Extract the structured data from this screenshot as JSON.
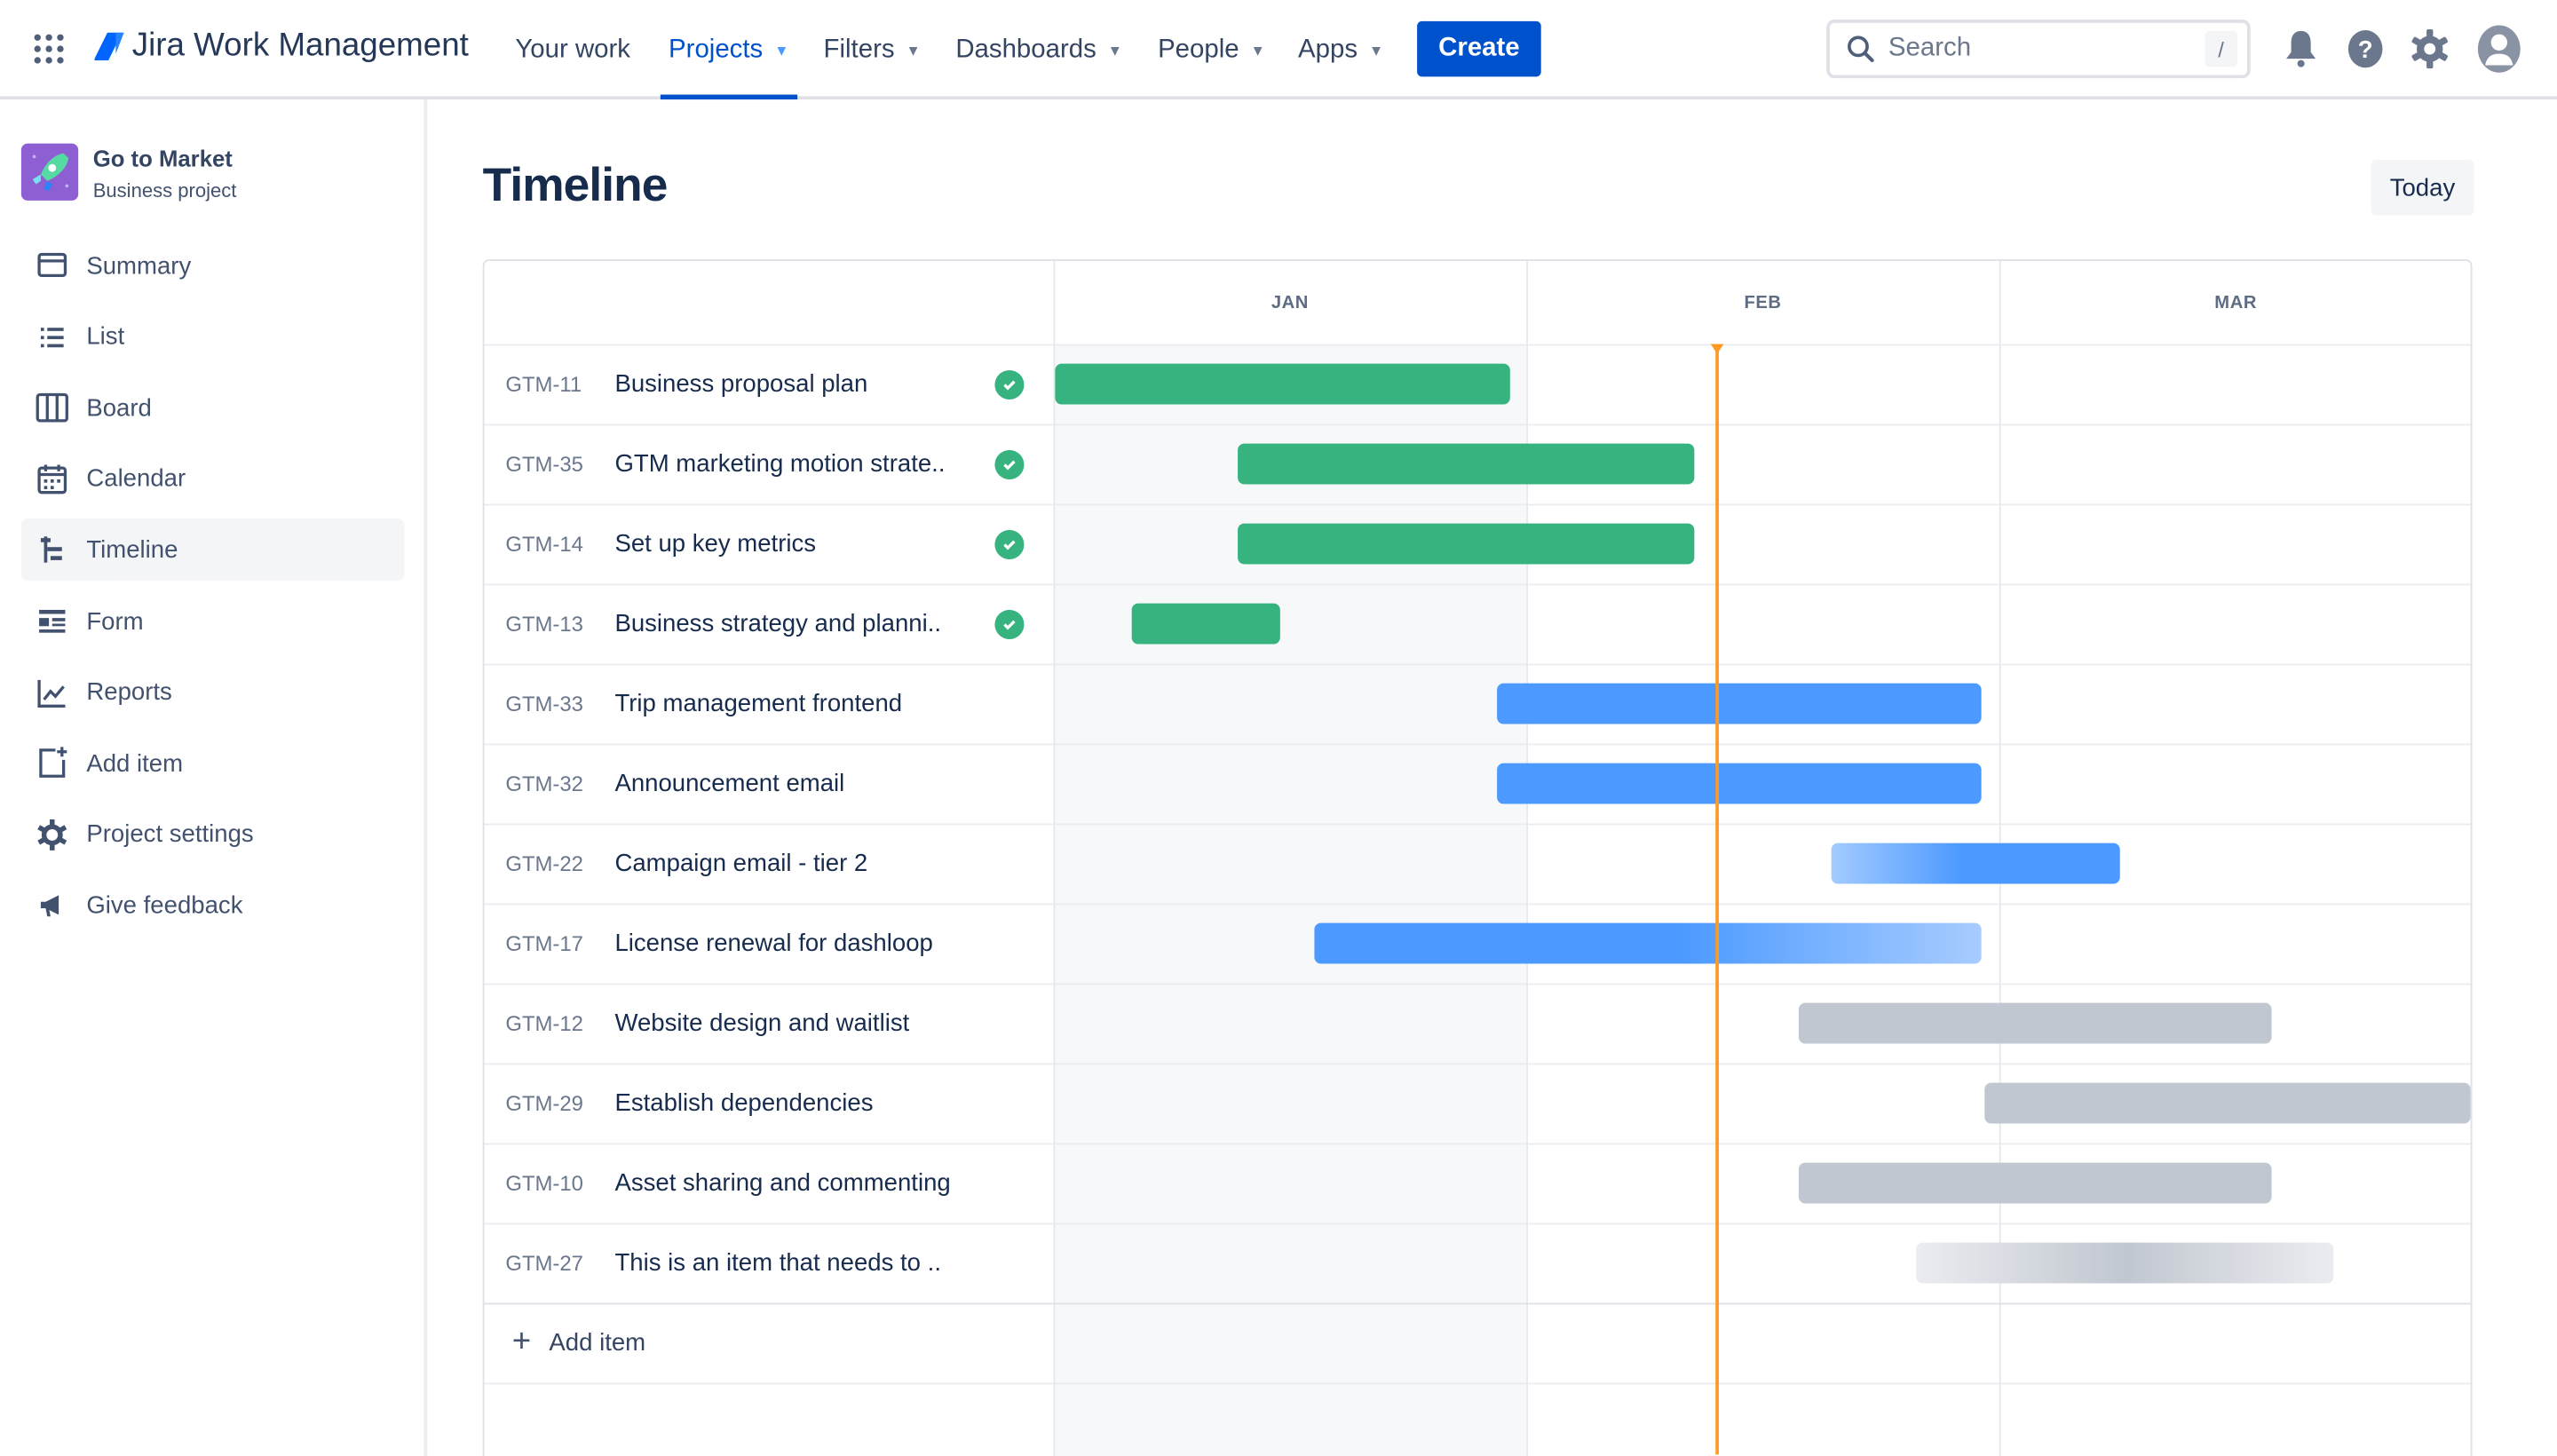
{
  "topbar": {
    "product": "Jira Work Management",
    "nav": [
      {
        "label": "Your work",
        "dropdown": false
      },
      {
        "label": "Projects",
        "dropdown": true,
        "active": true
      },
      {
        "label": "Filters",
        "dropdown": true
      },
      {
        "label": "Dashboards",
        "dropdown": true
      },
      {
        "label": "People",
        "dropdown": true
      },
      {
        "label": "Apps",
        "dropdown": true
      }
    ],
    "create_label": "Create",
    "search_placeholder": "Search",
    "search_shortcut": "/",
    "icons": [
      "bell-icon",
      "help-icon",
      "settings-icon",
      "avatar-icon"
    ]
  },
  "sidebar": {
    "project_name": "Go to Market",
    "project_type": "Business project",
    "items": [
      {
        "label": "Summary",
        "icon": "summary-icon"
      },
      {
        "label": "List",
        "icon": "list-icon"
      },
      {
        "label": "Board",
        "icon": "board-icon"
      },
      {
        "label": "Calendar",
        "icon": "calendar-icon"
      },
      {
        "label": "Timeline",
        "icon": "timeline-icon",
        "selected": true
      },
      {
        "label": "Form",
        "icon": "form-icon"
      },
      {
        "label": "Reports",
        "icon": "reports-icon"
      },
      {
        "label": "Add item",
        "icon": "add-item-icon"
      },
      {
        "label": "Project settings",
        "icon": "gear-icon"
      },
      {
        "label": "Give feedback",
        "icon": "megaphone-icon"
      }
    ]
  },
  "main": {
    "title": "Timeline",
    "today_label": "Today",
    "months": [
      "JAN",
      "FEB",
      "MAR"
    ],
    "today": "Feb 12",
    "add_item_label": "Add item",
    "colors": {
      "done": "#36b37e",
      "in_progress": "#4c9aff",
      "todo": "#c1c7d0",
      "today": "#ff991f"
    },
    "items": [
      {
        "key": "GTM-11",
        "summary": "Business proposal plan",
        "done": true,
        "status": "done",
        "start": "Jan 1",
        "end": "Jan 30"
      },
      {
        "key": "GTM-35",
        "summary": "GTM marketing motion strate..",
        "done": true,
        "status": "done",
        "start": "Jan 13",
        "end": "Feb 10"
      },
      {
        "key": "GTM-14",
        "summary": "Set up key metrics",
        "done": true,
        "status": "done",
        "start": "Jan 13",
        "end": "Feb 10"
      },
      {
        "key": "GTM-13",
        "summary": "Business strategy and planni..",
        "done": true,
        "status": "done",
        "start": "Jan 6",
        "end": "Jan 15"
      },
      {
        "key": "GTM-33",
        "summary": "Trip management frontend",
        "done": false,
        "status": "in_progress",
        "start": "Jan 30",
        "end": "Feb 27"
      },
      {
        "key": "GTM-32",
        "summary": "Announcement email",
        "done": false,
        "status": "in_progress",
        "start": "Jan 30",
        "end": "Feb 27"
      },
      {
        "key": "GTM-22",
        "summary": "Campaign email - tier 2",
        "done": false,
        "status": "in_progress",
        "fade": "start",
        "start": "Feb 19",
        "end": "Mar 8"
      },
      {
        "key": "GTM-17",
        "summary": "License renewal for dashloop",
        "done": false,
        "status": "in_progress",
        "fade": "end",
        "start": "Jan 18",
        "end": "Feb 27"
      },
      {
        "key": "GTM-12",
        "summary": "Website design and waitlist",
        "done": false,
        "status": "todo",
        "start": "Feb 17",
        "end": "Mar 18"
      },
      {
        "key": "GTM-29",
        "summary": "Establish dependencies",
        "done": false,
        "status": "todo",
        "start": "Feb 28",
        "end": "Mar 31"
      },
      {
        "key": "GTM-10",
        "summary": "Asset sharing and commenting",
        "done": false,
        "status": "todo",
        "start": "Feb 17",
        "end": "Mar 18"
      },
      {
        "key": "GTM-27",
        "summary": "This is an item that needs to ..",
        "done": false,
        "status": "todo",
        "fade": "both",
        "start": "Feb 24",
        "end": "Mar 22"
      }
    ]
  }
}
